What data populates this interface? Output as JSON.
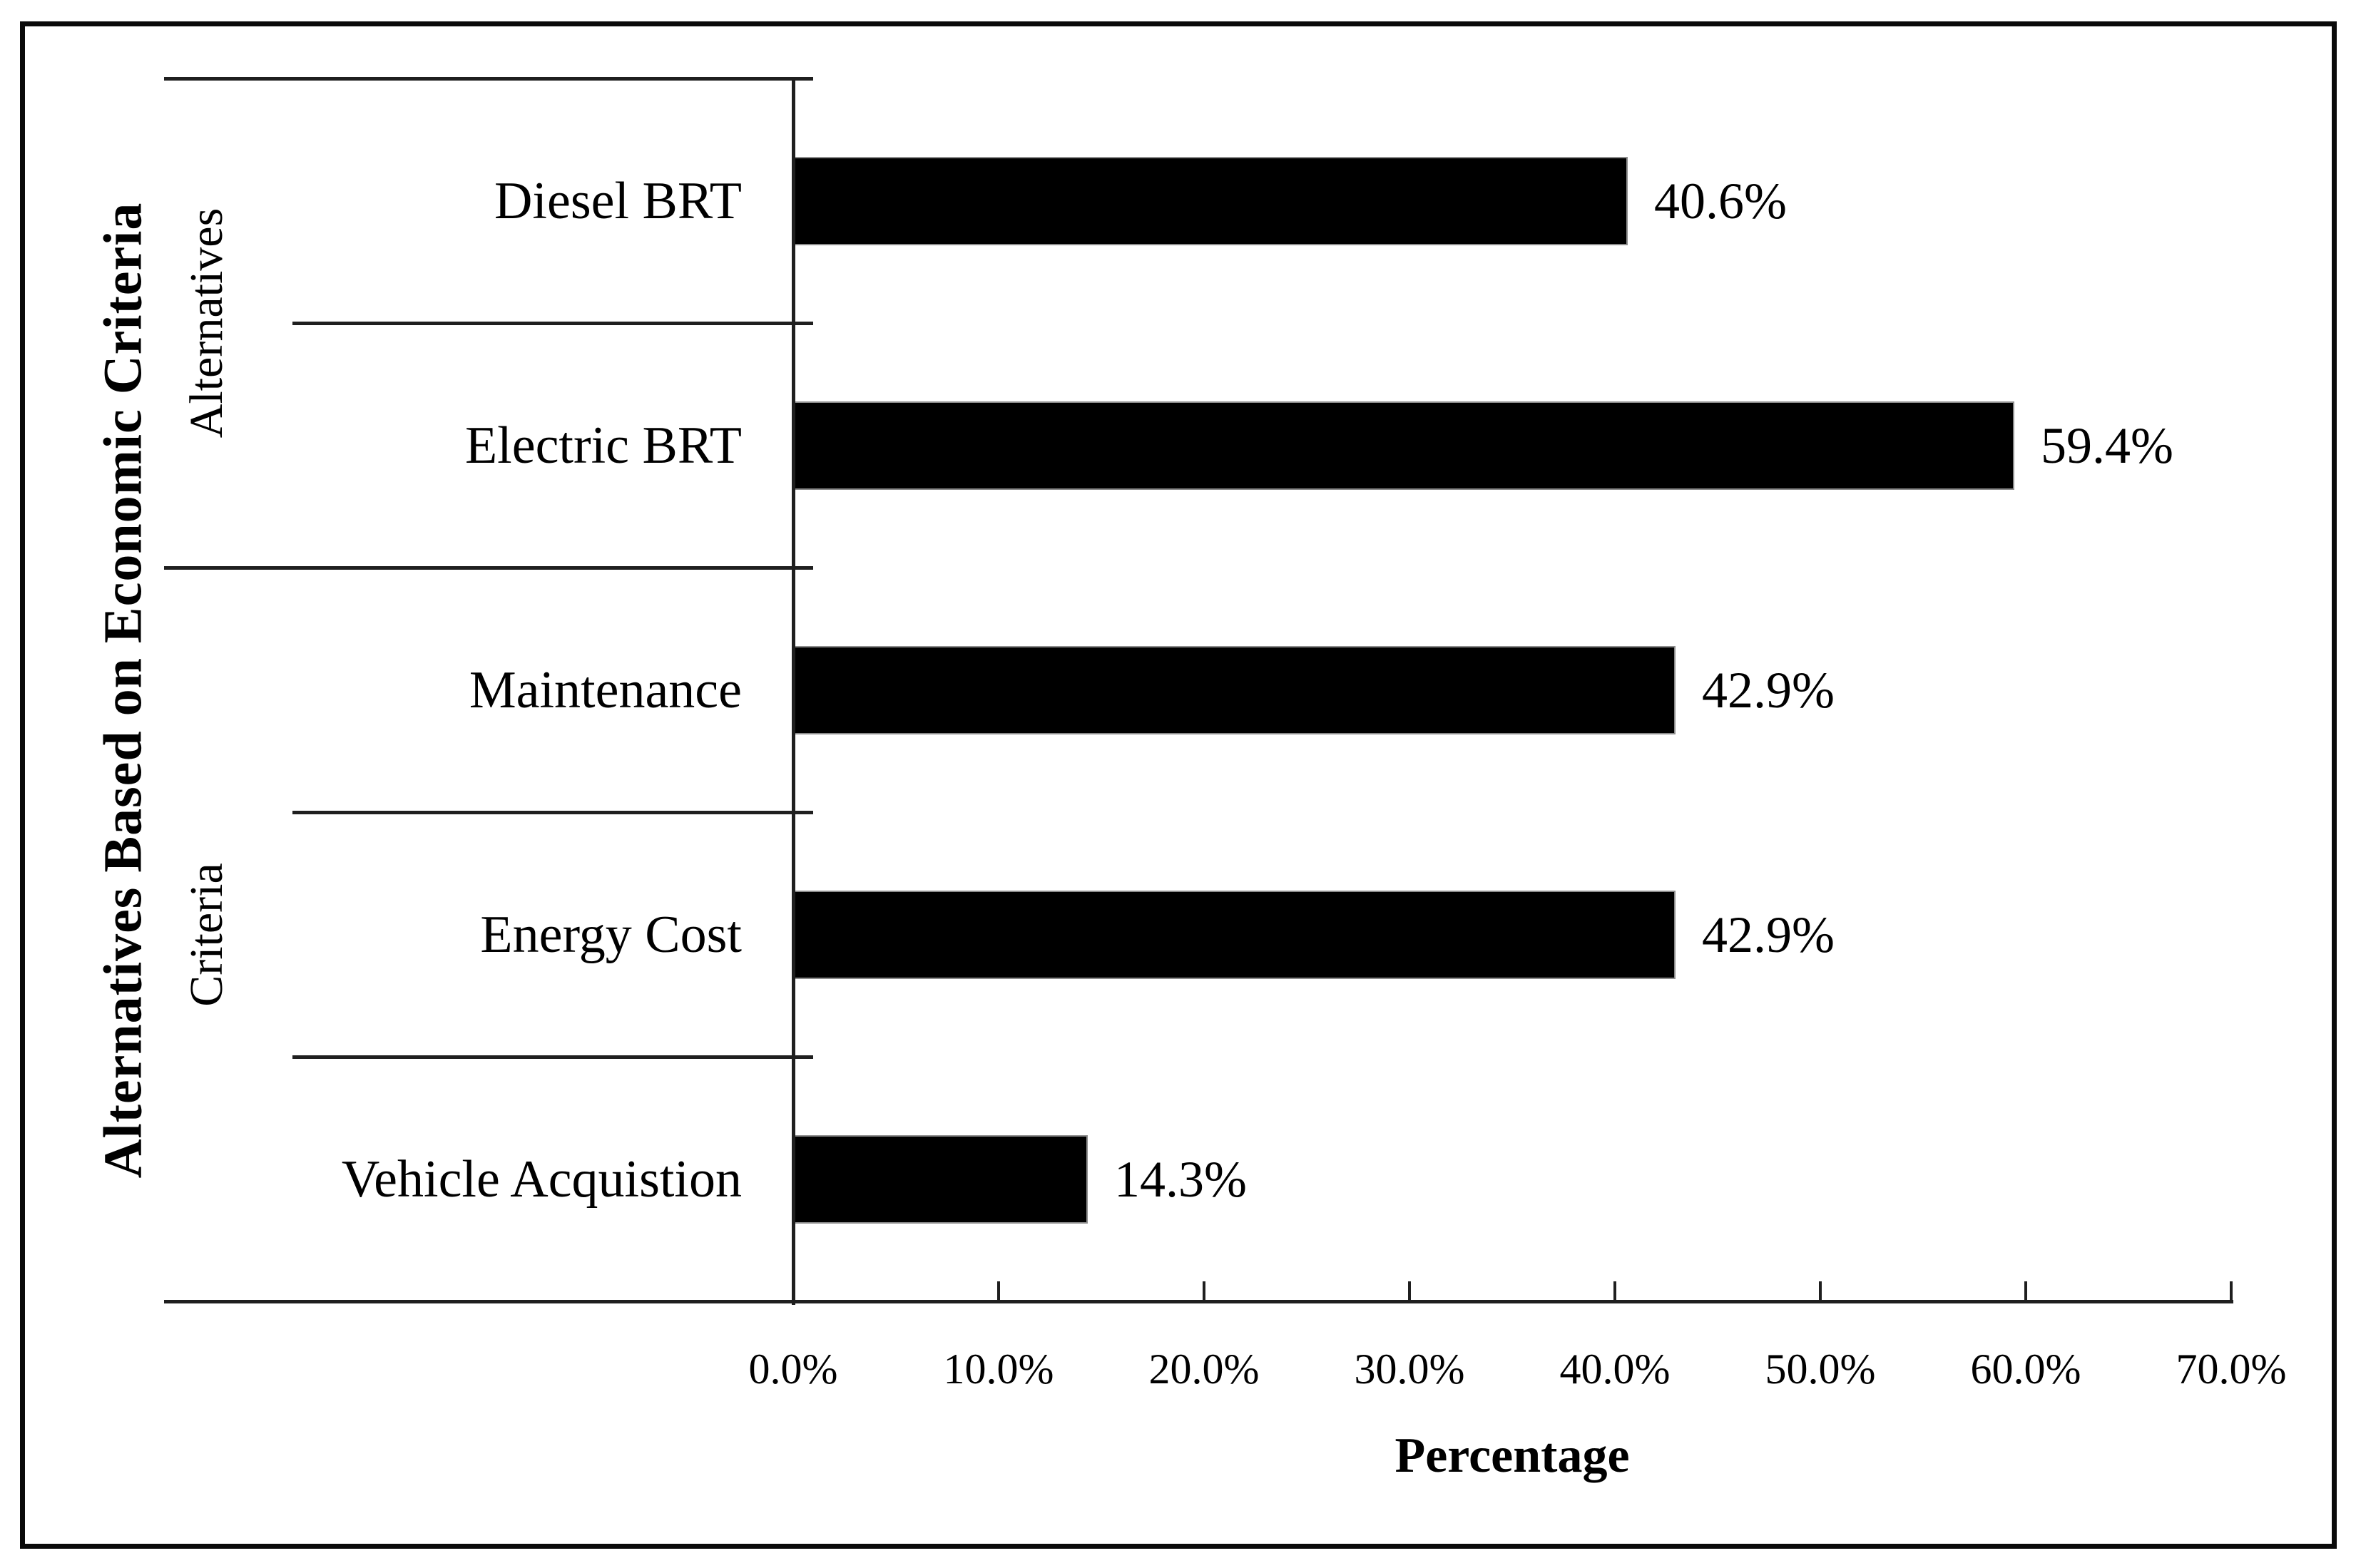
{
  "chart_data": {
    "type": "bar",
    "orientation": "horizontal",
    "xlabel": "Percentage",
    "ylabel": "Alternatives Based on Economic Criteria",
    "categories": [
      "Diesel BRT",
      "Electric BRT",
      "Maintenance",
      "Energy Cost",
      "Vehicle Acquistion"
    ],
    "values": [
      40.6,
      59.4,
      42.9,
      42.9,
      14.3
    ],
    "value_labels": [
      "40.6%",
      "59.4%",
      "42.9%",
      "42.9%",
      "14.3%"
    ],
    "groups": [
      {
        "label": "Alternatives",
        "size": 2
      },
      {
        "label": "Criteria",
        "size": 3
      }
    ],
    "x_ticks": [
      "0.0%",
      "10.0%",
      "20.0%",
      "30.0%",
      "40.0%",
      "50.0%",
      "60.0%",
      "70.0%"
    ],
    "xlim": [
      0,
      70
    ],
    "grid": false,
    "legend": false,
    "bar_color": "#000000",
    "axis_color": "#1f1f1f",
    "background_color": "#ffffff"
  }
}
